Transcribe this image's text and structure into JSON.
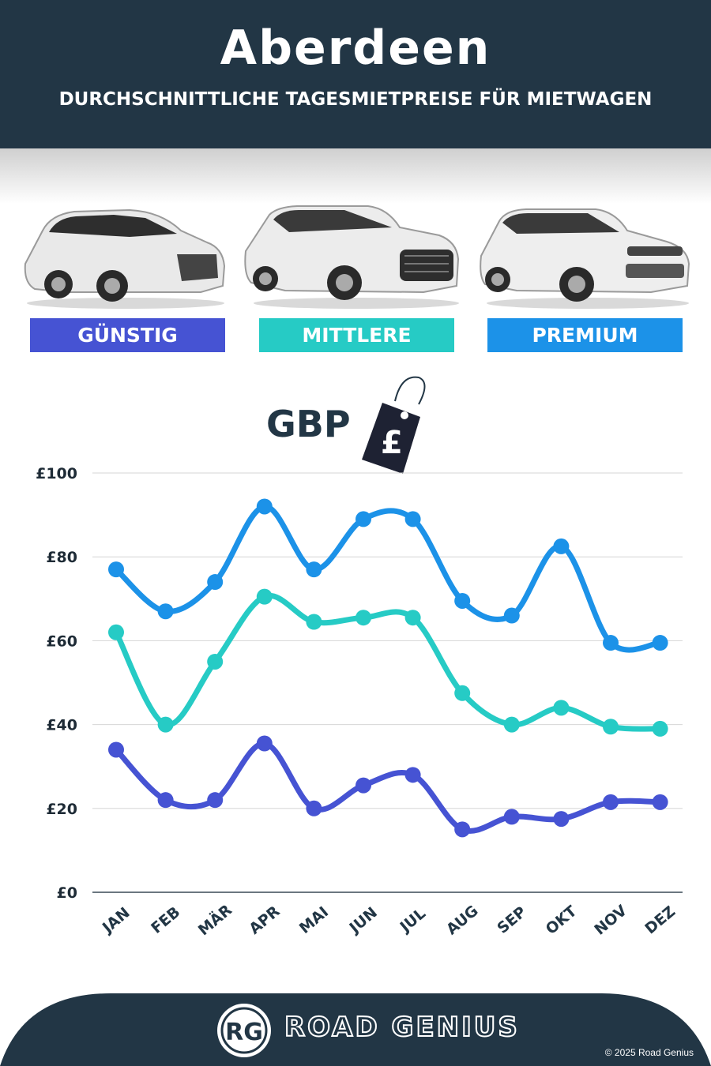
{
  "header": {
    "title": "Aberdeen",
    "subtitle": "DURCHSCHNITTLICHE TAGESMIETPREISE FÜR MIETWAGEN"
  },
  "categories": [
    {
      "label": "GÜNSTIG",
      "color": "#4653d3"
    },
    {
      "label": "MITTLERE",
      "color": "#26cbc5"
    },
    {
      "label": "PREMIUM",
      "color": "#1c92e8"
    }
  ],
  "currency": {
    "label": "GBP",
    "symbol": "£",
    "icon": "price-tag-icon"
  },
  "chart_data": {
    "type": "line",
    "categories": [
      "JAN",
      "FEB",
      "MÄR",
      "APR",
      "MAI",
      "JUN",
      "JUL",
      "AUG",
      "SEP",
      "OKT",
      "NOV",
      "DEZ"
    ],
    "ylim": [
      0,
      100
    ],
    "yticks": [
      0,
      20,
      40,
      60,
      80,
      100
    ],
    "ytick_labels": [
      "£0",
      "£20",
      "£40",
      "£60",
      "£80",
      "£100"
    ],
    "grid": true,
    "series": [
      {
        "key": "premium",
        "color": "#1c92e8",
        "values": [
          77,
          67,
          74,
          92,
          77,
          89,
          89,
          69.5,
          66,
          82.5,
          59.5,
          59.5
        ]
      },
      {
        "key": "mittlere",
        "color": "#26cbc5",
        "values": [
          62,
          40,
          55,
          70.5,
          64.5,
          65.5,
          65.5,
          47.5,
          40,
          44,
          39.5,
          39
        ]
      },
      {
        "key": "guenstig",
        "color": "#4653d3",
        "values": [
          34,
          22,
          22,
          35.5,
          20,
          25.5,
          28,
          15,
          18,
          17.5,
          21.5,
          21.5
        ]
      }
    ]
  },
  "footer": {
    "logo_letters": "RG",
    "brand": "ROAD GENIUS",
    "copyright": "© 2025 Road Genius",
    "color": "#223645"
  }
}
